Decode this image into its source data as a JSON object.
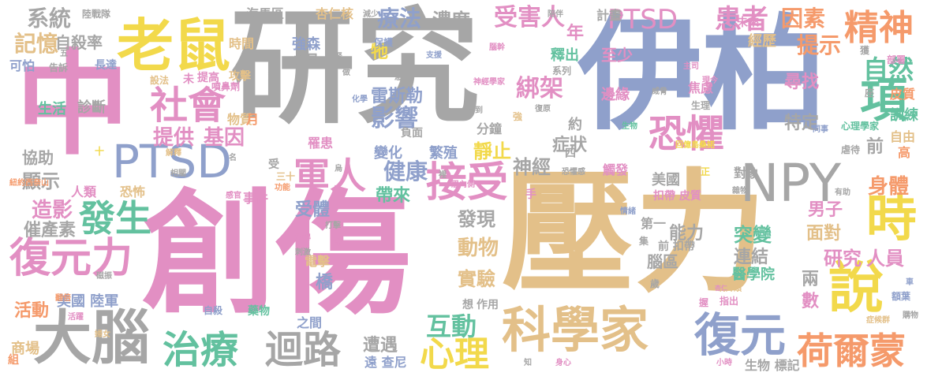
{
  "palette": {
    "gray": "#a6a6a6",
    "pink": "#e28fc3",
    "blue": "#8fa0cb",
    "gold": "#e3c089",
    "yellow": "#f2d94b",
    "green": "#63c19f",
    "orange": "#f59a6b",
    "lime": "#a7d34f"
  },
  "words": [
    {
      "text": "研究",
      "color": "gray"
    },
    {
      "text": "創傷",
      "color": "pink"
    },
    {
      "text": "壓力",
      "color": "gold"
    },
    {
      "text": "伊柏",
      "color": "blue"
    },
    {
      "text": "中",
      "color": "pink"
    },
    {
      "text": "老鼠",
      "color": "yellow"
    },
    {
      "text": "科學家",
      "color": "gold"
    },
    {
      "text": "PTSD",
      "color": "blue"
    },
    {
      "text": "大腦",
      "color": "gray"
    },
    {
      "text": "復元力",
      "color": "pink"
    },
    {
      "text": "NPY",
      "color": "gray"
    },
    {
      "text": "時",
      "color": "yellow"
    },
    {
      "text": "說",
      "color": "yellow"
    },
    {
      "text": "復元",
      "color": "blue"
    },
    {
      "text": "項",
      "color": "green"
    },
    {
      "text": "恐懼",
      "color": "pink"
    },
    {
      "text": "接受",
      "color": "pink"
    },
    {
      "text": "社會",
      "color": "pink"
    },
    {
      "text": "軍人",
      "color": "pink"
    },
    {
      "text": "發生",
      "color": "green"
    },
    {
      "text": "治療",
      "color": "green"
    },
    {
      "text": "迴路",
      "color": "gray"
    },
    {
      "text": "心理",
      "color": "yellow"
    },
    {
      "text": "荷爾蒙",
      "color": "orange"
    },
    {
      "text": "精神",
      "color": "orange"
    },
    {
      "text": "PTSD",
      "color": "pink"
    },
    {
      "text": "患者",
      "color": "pink"
    },
    {
      "text": "因素",
      "color": "orange"
    },
    {
      "text": "系統",
      "color": "gray"
    },
    {
      "text": "記憶",
      "color": "gold"
    },
    {
      "text": "自殺率",
      "color": "gray"
    },
    {
      "text": "受害人",
      "color": "pink"
    },
    {
      "text": "療法",
      "color": "blue"
    },
    {
      "text": "濃度",
      "color": "gray"
    },
    {
      "text": "影響",
      "color": "blue"
    },
    {
      "text": "綁架",
      "color": "pink"
    },
    {
      "text": "提示",
      "color": "orange"
    },
    {
      "text": "自然",
      "color": "green"
    },
    {
      "text": "提供",
      "color": "pink"
    },
    {
      "text": "基因",
      "color": "pink"
    },
    {
      "text": "健康",
      "color": "blue"
    },
    {
      "text": "互動",
      "color": "green"
    },
    {
      "text": "身體",
      "color": "orange"
    },
    {
      "text": "人員",
      "color": "pink"
    },
    {
      "text": "研究",
      "color": "pink"
    },
    {
      "text": "造影",
      "color": "pink"
    },
    {
      "text": "顯示",
      "color": "gray"
    },
    {
      "text": "催產素",
      "color": "gray"
    },
    {
      "text": "活動",
      "color": "orange"
    },
    {
      "text": "動物",
      "color": "gold"
    },
    {
      "text": "實驗",
      "color": "gold"
    },
    {
      "text": "發現",
      "color": "gray"
    },
    {
      "text": "遭遇",
      "color": "gray"
    },
    {
      "text": "突變",
      "color": "green"
    },
    {
      "text": "連結",
      "color": "gray"
    },
    {
      "text": "面對",
      "color": "gold"
    },
    {
      "text": "男子",
      "color": "pink"
    },
    {
      "text": "神經",
      "color": "gray"
    },
    {
      "text": "症狀",
      "color": "gray"
    },
    {
      "text": "靜止",
      "color": "yellow"
    },
    {
      "text": "能力",
      "color": "gray"
    },
    {
      "text": "美國 陸軍",
      "color": "blue"
    },
    {
      "text": "受體",
      "color": "blue"
    },
    {
      "text": "帶來",
      "color": "green"
    },
    {
      "text": "特定",
      "color": "gray"
    },
    {
      "text": "尋找",
      "color": "pink"
    },
    {
      "text": "經歷",
      "color": "gold"
    },
    {
      "text": "未來",
      "color": "pink"
    },
    {
      "text": "協助",
      "color": "gray"
    },
    {
      "text": "診斷",
      "color": "gray"
    },
    {
      "text": "生活",
      "color": "green"
    },
    {
      "text": "物質",
      "color": "gold"
    },
    {
      "text": "強森",
      "color": "blue"
    },
    {
      "text": "雷斯勒",
      "color": "blue"
    },
    {
      "text": "變化",
      "color": "blue"
    },
    {
      "text": "繁殖",
      "color": "blue"
    },
    {
      "text": "邊緣",
      "color": "pink"
    },
    {
      "text": "焦慮",
      "color": "pink"
    },
    {
      "text": "訓練",
      "color": "green"
    },
    {
      "text": "皮質",
      "color": "orange"
    },
    {
      "text": "海馬區",
      "color": "gray"
    },
    {
      "text": "杏仁核",
      "color": "gold"
    },
    {
      "text": "計畫",
      "color": "gray"
    },
    {
      "text": "釋出",
      "color": "green"
    },
    {
      "text": "至少",
      "color": "pink"
    },
    {
      "text": "時間",
      "color": "gold"
    },
    {
      "text": "力量",
      "color": "gray"
    },
    {
      "text": "可怕",
      "color": "blue"
    },
    {
      "text": "人類",
      "color": "pink"
    },
    {
      "text": "恐怖",
      "color": "gold"
    },
    {
      "text": "事件",
      "color": "pink"
    },
    {
      "text": "商場",
      "color": "gold"
    },
    {
      "text": "遠 查尼",
      "color": "blue"
    },
    {
      "text": "橋",
      "color": "blue"
    },
    {
      "text": "電擊",
      "color": "gold"
    },
    {
      "text": "醫學院",
      "color": "green"
    },
    {
      "text": "腦區",
      "color": "gray"
    },
    {
      "text": "兩",
      "color": "gray"
    },
    {
      "text": "數",
      "color": "pink"
    },
    {
      "text": "前",
      "color": "gray"
    },
    {
      "text": "高",
      "color": "orange"
    },
    {
      "text": "年",
      "color": "pink"
    },
    {
      "text": "牠",
      "color": "yellow"
    },
    {
      "text": "前 扣帶",
      "color": "gray"
    },
    {
      "text": "對象",
      "color": "gray"
    },
    {
      "text": "美國",
      "color": "gray"
    },
    {
      "text": "扣帶 皮質",
      "color": "pink"
    },
    {
      "text": "自由",
      "color": "gold"
    },
    {
      "text": "生物 標記",
      "color": "gray"
    },
    {
      "text": "作用",
      "color": "gray"
    },
    {
      "text": "罹患",
      "color": "pink"
    },
    {
      "text": "之間",
      "color": "blue"
    },
    {
      "text": "藥物",
      "color": "green"
    },
    {
      "text": "月",
      "color": "orange"
    },
    {
      "text": "分鐘",
      "color": "gray"
    },
    {
      "text": "負面",
      "color": "gray"
    },
    {
      "text": "約",
      "color": "gray"
    },
    {
      "text": "生理",
      "color": "gray"
    },
    {
      "text": "第一",
      "color": "gray"
    },
    {
      "text": "想",
      "color": "gray"
    },
    {
      "text": "獲",
      "color": "gray"
    },
    {
      "text": "座",
      "color": "gray"
    },
    {
      "text": "部署",
      "color": "pink"
    },
    {
      "text": "紐約西奈山",
      "color": "orange"
    },
    {
      "text": "陸戰隊",
      "color": "gray"
    },
    {
      "text": "長達",
      "color": "blue"
    },
    {
      "text": "告訴",
      "color": "gray"
    },
    {
      "text": "攻擊",
      "color": "gold"
    },
    {
      "text": "提高",
      "color": "pink"
    },
    {
      "text": "噴鼻劑",
      "color": "pink"
    },
    {
      "text": "設法",
      "color": "gold"
    },
    {
      "text": "減少",
      "color": "gray"
    },
    {
      "text": "保護",
      "color": "blue"
    },
    {
      "text": "支援",
      "color": "blue"
    },
    {
      "text": "腦幹",
      "color": "pink"
    },
    {
      "text": "陪伴",
      "color": "gray"
    },
    {
      "text": "神經學家",
      "color": "pink"
    },
    {
      "text": "威脅",
      "color": "gray"
    },
    {
      "text": "心理學家",
      "color": "green"
    },
    {
      "text": "同事",
      "color": "blue"
    },
    {
      "text": "虐待",
      "color": "gray"
    },
    {
      "text": "復原",
      "color": "gray"
    },
    {
      "text": "化學",
      "color": "blue"
    },
    {
      "text": "回億島桑諾",
      "color": "yellow"
    },
    {
      "text": "解釋",
      "color": "gold"
    },
    {
      "text": "相關",
      "color": "gray"
    },
    {
      "text": "烏",
      "color": "gray"
    },
    {
      "text": "三十",
      "color": "gold"
    },
    {
      "text": "功能",
      "color": "orange"
    },
    {
      "text": "感官",
      "color": "pink"
    },
    {
      "text": "恐懼感",
      "color": "gray"
    },
    {
      "text": "觸發",
      "color": "pink"
    },
    {
      "text": "雜物",
      "color": "gray"
    },
    {
      "text": "有助",
      "color": "gray"
    },
    {
      "text": "情緒",
      "color": "blue"
    },
    {
      "text": "騎片類",
      "color": "gold"
    },
    {
      "text": "指出",
      "color": "pink"
    },
    {
      "text": "症候群",
      "color": "gold"
    },
    {
      "text": "額葉",
      "color": "blue"
    },
    {
      "text": "購物",
      "color": "gray"
    },
    {
      "text": "小時",
      "color": "pink"
    },
    {
      "text": "身心",
      "color": "pink"
    },
    {
      "text": "知",
      "color": "gray"
    },
    {
      "text": "婦女",
      "color": "gold"
    },
    {
      "text": "組",
      "color": "orange"
    },
    {
      "text": "翻倍",
      "color": "orange"
    },
    {
      "text": "活躍",
      "color": "pink"
    },
    {
      "text": "磁振",
      "color": "gray"
    },
    {
      "text": "變得",
      "color": "pink"
    },
    {
      "text": "刺激",
      "color": "gray"
    },
    {
      "text": "打擊",
      "color": "gray"
    },
    {
      "text": "自殺",
      "color": "blue"
    },
    {
      "text": "杏仁",
      "color": "pink"
    },
    {
      "text": "歲",
      "color": "gray"
    },
    {
      "text": "車",
      "color": "blue"
    },
    {
      "text": "握",
      "color": "pink"
    },
    {
      "text": "手",
      "color": "pink"
    },
    {
      "text": "家",
      "color": "pink"
    },
    {
      "text": "集",
      "color": "gray"
    },
    {
      "text": "四",
      "color": "gray"
    },
    {
      "text": "腎",
      "color": "gray"
    },
    {
      "text": "做",
      "color": "gray"
    },
    {
      "text": "急性",
      "color": "gray"
    },
    {
      "text": "受到",
      "color": "gray"
    },
    {
      "text": "系列",
      "color": "gray"
    },
    {
      "text": "現今",
      "color": "pink"
    },
    {
      "text": "主司",
      "color": "pink"
    },
    {
      "text": "正",
      "color": "yellow"
    },
    {
      "text": "強",
      "color": "gold"
    },
    {
      "text": "受",
      "color": "gray"
    },
    {
      "text": "名",
      "color": "gray"
    },
    {
      "text": "未",
      "color": "pink"
    },
    {
      "text": "五",
      "color": "gray"
    },
    {
      "text": "裡",
      "color": "gray"
    },
    {
      "text": "眉內側",
      "color": "pink"
    },
    {
      "text": "生物",
      "color": "green"
    },
    {
      "text": "十",
      "color": "yellow"
    }
  ]
}
